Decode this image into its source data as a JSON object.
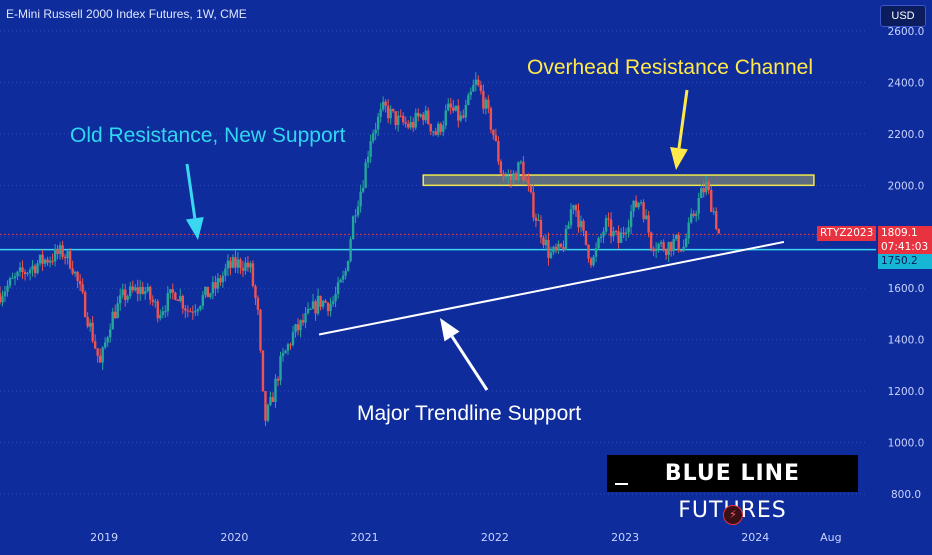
{
  "header": {
    "title": "E-Mini Russell 2000 Index Futures, 1W, CME",
    "currency_button": "USD"
  },
  "annotations": {
    "resistance_channel": "Overhead Resistance Channel",
    "old_resistance": "Old Resistance, New Support",
    "trendline": "Major Trendline Support"
  },
  "price_tags": {
    "ticker": "RTYZ2023",
    "last_price": "1809.1",
    "countdown": "07:41:03",
    "support_level": "1750.2"
  },
  "logo": {
    "bold": "BLUE LINE",
    "regular": "FUTURES"
  },
  "colors": {
    "background": "#0f2c9c",
    "up_candle": "#26a69a",
    "down_candle": "#ef5350",
    "channel_fill": "#f2e84b",
    "support_line": "#3ad7f0",
    "trendline": "#ffffff"
  },
  "chart_data": {
    "type": "candlestick",
    "title": "E-Mini Russell 2000 Index Futures, 1W, CME",
    "ylim": [
      800,
      2600
    ],
    "y_ticks": [
      800,
      1000,
      1200,
      1400,
      1600,
      1800,
      2000,
      2200,
      2400,
      2600
    ],
    "y_tick_labels": [
      "800.0",
      "1000.0",
      "1200.0",
      "1400.0",
      "1600.0",
      "1800.0",
      "2000.0",
      "2200.0",
      "2400.0",
      "2600.0"
    ],
    "x_ticks": [
      {
        "label": "2019",
        "t": 2019.0
      },
      {
        "label": "2020",
        "t": 2020.0
      },
      {
        "label": "2021",
        "t": 2021.0
      },
      {
        "label": "2022",
        "t": 2022.0
      },
      {
        "label": "2023",
        "t": 2023.0
      },
      {
        "label": "2024",
        "t": 2024.0
      },
      {
        "label": "Aug",
        "t": 2024.58
      }
    ],
    "xlim": [
      2018.2,
      2024.85
    ],
    "price_path": [
      [
        2018.2,
        1580
      ],
      [
        2018.35,
        1650
      ],
      [
        2018.5,
        1700
      ],
      [
        2018.68,
        1740
      ],
      [
        2018.75,
        1700
      ],
      [
        2018.85,
        1530
      ],
      [
        2018.97,
        1300
      ],
      [
        2019.05,
        1480
      ],
      [
        2019.15,
        1570
      ],
      [
        2019.3,
        1600
      ],
      [
        2019.42,
        1510
      ],
      [
        2019.55,
        1590
      ],
      [
        2019.65,
        1510
      ],
      [
        2019.75,
        1560
      ],
      [
        2019.85,
        1600
      ],
      [
        2019.95,
        1680
      ],
      [
        2020.05,
        1700
      ],
      [
        2020.12,
        1680
      ],
      [
        2020.18,
        1500
      ],
      [
        2020.23,
        1080
      ],
      [
        2020.28,
        1150
      ],
      [
        2020.35,
        1300
      ],
      [
        2020.45,
        1420
      ],
      [
        2020.55,
        1480
      ],
      [
        2020.65,
        1550
      ],
      [
        2020.75,
        1540
      ],
      [
        2020.85,
        1650
      ],
      [
        2020.92,
        1900
      ],
      [
        2020.98,
        2000
      ],
      [
        2021.05,
        2200
      ],
      [
        2021.15,
        2300
      ],
      [
        2021.25,
        2250
      ],
      [
        2021.35,
        2230
      ],
      [
        2021.45,
        2280
      ],
      [
        2021.55,
        2200
      ],
      [
        2021.65,
        2300
      ],
      [
        2021.75,
        2250
      ],
      [
        2021.85,
        2400
      ],
      [
        2021.9,
        2350
      ],
      [
        2021.98,
        2220
      ],
      [
        2022.05,
        2050
      ],
      [
        2022.12,
        2020
      ],
      [
        2022.2,
        2080
      ],
      [
        2022.3,
        1900
      ],
      [
        2022.42,
        1730
      ],
      [
        2022.5,
        1740
      ],
      [
        2022.55,
        1800
      ],
      [
        2022.6,
        1950
      ],
      [
        2022.68,
        1800
      ],
      [
        2022.75,
        1700
      ],
      [
        2022.85,
        1850
      ],
      [
        2022.95,
        1780
      ],
      [
        2023.05,
        1900
      ],
      [
        2023.12,
        1950
      ],
      [
        2023.2,
        1780
      ],
      [
        2023.3,
        1760
      ],
      [
        2023.38,
        1780
      ],
      [
        2023.45,
        1760
      ],
      [
        2023.52,
        1880
      ],
      [
        2023.58,
        1960
      ],
      [
        2023.62,
        2000
      ],
      [
        2023.68,
        1900
      ],
      [
        2023.72,
        1809
      ]
    ],
    "horizontal_levels": [
      {
        "value": 1750.2,
        "label": "1750.2",
        "style": "support"
      }
    ],
    "resistance_channel": {
      "low": 2000,
      "high": 2040,
      "t_start": 2021.45,
      "t_end": 2024.45
    },
    "trendline": {
      "t1": 2020.65,
      "v1": 1420,
      "t2": 2024.22,
      "v2": 1780
    },
    "last": {
      "value": 1809.1,
      "label": "1809.1"
    }
  }
}
